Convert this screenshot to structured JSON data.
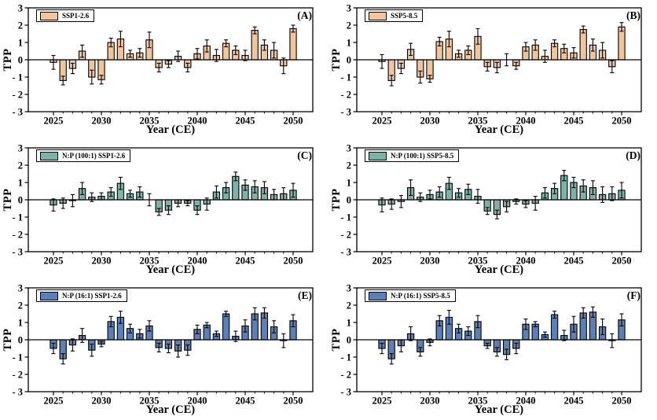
{
  "figure": {
    "ylabel": "TPP",
    "xlabel": "Year (CE)",
    "ylim": [
      -3,
      3
    ],
    "y_tick_values": [
      3,
      2,
      1,
      0,
      -1,
      -2,
      -3
    ],
    "y_tick_labels": [
      "3",
      "2",
      "1",
      "0",
      "- 1",
      "- 2",
      "- 3"
    ],
    "x_tick_values": [
      2025,
      2030,
      2035,
      2040,
      2045,
      2050
    ],
    "grid": false,
    "legend_position": "top-left",
    "error_bars": true
  },
  "chart_data": [
    {
      "type": "bar",
      "panel_label": "(A)",
      "legend": "SSP1-2.6",
      "color": "#F2C49B",
      "xlabel": "Year (CE)",
      "ylabel": "TPP",
      "ylim": [
        -3,
        3
      ],
      "x": [
        2025,
        2026,
        2027,
        2028,
        2029,
        2030,
        2031,
        2032,
        2033,
        2034,
        2035,
        2036,
        2037,
        2038,
        2039,
        2040,
        2041,
        2042,
        2043,
        2044,
        2045,
        2046,
        2047,
        2048,
        2049,
        2050
      ],
      "values": [
        -0.15,
        -1.2,
        -0.5,
        0.5,
        -1.0,
        -1.15,
        1.0,
        1.2,
        0.35,
        0.4,
        1.15,
        -0.45,
        -0.25,
        0.2,
        -0.45,
        0.35,
        0.8,
        0.25,
        0.95,
        0.55,
        0.25,
        1.7,
        0.85,
        0.55,
        -0.35,
        1.8
      ],
      "errors": [
        0.4,
        0.25,
        0.3,
        0.35,
        0.4,
        0.25,
        0.25,
        0.45,
        0.2,
        0.25,
        0.45,
        0.25,
        0.2,
        0.3,
        0.25,
        0.3,
        0.35,
        0.35,
        0.2,
        0.25,
        0.3,
        0.2,
        0.3,
        0.45,
        0.45,
        0.2
      ]
    },
    {
      "type": "bar",
      "panel_label": "(B)",
      "legend": "SSP5-8.5",
      "color": "#F2C49B",
      "xlabel": "Year (CE)",
      "ylabel": "TPP",
      "ylim": [
        -3,
        3
      ],
      "x": [
        2025,
        2026,
        2027,
        2028,
        2029,
        2030,
        2031,
        2032,
        2033,
        2034,
        2035,
        2036,
        2037,
        2038,
        2039,
        2040,
        2041,
        2042,
        2043,
        2044,
        2045,
        2046,
        2047,
        2048,
        2049,
        2050
      ],
      "values": [
        -0.1,
        -1.2,
        -0.5,
        0.6,
        -1.0,
        -1.1,
        1.05,
        1.2,
        0.35,
        0.55,
        1.35,
        -0.4,
        -0.45,
        0.0,
        -0.35,
        0.75,
        0.85,
        0.2,
        0.95,
        0.65,
        0.4,
        1.75,
        0.85,
        0.55,
        -0.4,
        1.9
      ],
      "errors": [
        0.4,
        0.3,
        0.3,
        0.35,
        0.35,
        0.2,
        0.25,
        0.45,
        0.2,
        0.25,
        0.45,
        0.25,
        0.3,
        0.35,
        0.2,
        0.25,
        0.3,
        0.35,
        0.2,
        0.25,
        0.3,
        0.2,
        0.35,
        0.45,
        0.35,
        0.25
      ]
    },
    {
      "type": "bar",
      "panel_label": "(C)",
      "legend": "N:P (100:1) SSP1-2.6",
      "color": "#7DB2A8",
      "xlabel": "Year (CE)",
      "ylabel": "TPP",
      "ylim": [
        -3,
        3
      ],
      "x": [
        2025,
        2026,
        2027,
        2028,
        2029,
        2030,
        2031,
        2032,
        2033,
        2034,
        2035,
        2036,
        2037,
        2038,
        2039,
        2040,
        2041,
        2042,
        2043,
        2044,
        2045,
        2046,
        2047,
        2048,
        2049,
        2050
      ],
      "values": [
        -0.3,
        -0.2,
        -0.05,
        0.65,
        0.15,
        0.2,
        0.45,
        0.95,
        0.35,
        0.45,
        0.0,
        -0.7,
        -0.6,
        -0.2,
        -0.2,
        -0.6,
        -0.25,
        0.45,
        0.7,
        1.35,
        0.85,
        0.75,
        0.7,
        0.3,
        0.35,
        0.55
      ],
      "errors": [
        0.35,
        0.3,
        0.35,
        0.35,
        0.25,
        0.2,
        0.25,
        0.35,
        0.2,
        0.3,
        0.35,
        0.2,
        0.25,
        0.2,
        0.15,
        0.25,
        0.35,
        0.35,
        0.3,
        0.25,
        0.3,
        0.35,
        0.35,
        0.3,
        0.35,
        0.4
      ]
    },
    {
      "type": "bar",
      "panel_label": "(D)",
      "legend": "N:P (100:1) SSP5-8.5",
      "color": "#7DB2A8",
      "xlabel": "Year (CE)",
      "ylabel": "TPP",
      "ylim": [
        -3,
        3
      ],
      "x": [
        2025,
        2026,
        2027,
        2028,
        2029,
        2030,
        2031,
        2032,
        2033,
        2034,
        2035,
        2036,
        2037,
        2038,
        2039,
        2040,
        2041,
        2042,
        2043,
        2044,
        2045,
        2046,
        2047,
        2048,
        2049,
        2050
      ],
      "values": [
        -0.3,
        -0.25,
        -0.1,
        0.7,
        0.15,
        0.3,
        0.45,
        0.95,
        0.4,
        0.6,
        0.2,
        -0.65,
        -0.85,
        -0.4,
        -0.1,
        -0.25,
        -0.2,
        0.4,
        0.65,
        1.4,
        1.0,
        0.8,
        0.7,
        0.3,
        0.35,
        0.55
      ],
      "errors": [
        0.4,
        0.3,
        0.35,
        0.45,
        0.25,
        0.25,
        0.3,
        0.35,
        0.25,
        0.3,
        0.4,
        0.2,
        0.25,
        0.3,
        0.15,
        0.2,
        0.4,
        0.3,
        0.3,
        0.3,
        0.3,
        0.35,
        0.4,
        0.45,
        0.4,
        0.45
      ]
    },
    {
      "type": "bar",
      "panel_label": "(E)",
      "legend": "N:P (16:1) SSP1-2.6",
      "color": "#5B80B8",
      "xlabel": "Year (CE)",
      "ylabel": "TPP",
      "ylim": [
        -3,
        3
      ],
      "x": [
        2025,
        2026,
        2027,
        2028,
        2029,
        2030,
        2031,
        2032,
        2033,
        2034,
        2035,
        2036,
        2037,
        2038,
        2039,
        2040,
        2041,
        2042,
        2043,
        2044,
        2045,
        2046,
        2047,
        2048,
        2049,
        2050
      ],
      "values": [
        -0.5,
        -1.1,
        -0.3,
        0.25,
        -0.6,
        -0.25,
        1.05,
        1.3,
        0.65,
        0.35,
        0.8,
        -0.45,
        -0.5,
        -0.65,
        -0.6,
        0.6,
        0.85,
        0.35,
        1.5,
        0.2,
        0.8,
        1.5,
        1.55,
        0.75,
        -0.05,
        1.1
      ],
      "errors": [
        0.3,
        0.3,
        0.35,
        0.4,
        0.35,
        0.15,
        0.3,
        0.35,
        0.25,
        0.25,
        0.3,
        0.25,
        0.25,
        0.35,
        0.3,
        0.25,
        0.15,
        0.15,
        0.15,
        0.3,
        0.35,
        0.35,
        0.3,
        0.35,
        0.4,
        0.35
      ]
    },
    {
      "type": "bar",
      "panel_label": "(F)",
      "legend": "N:P (16:1) SSP5-8.5",
      "color": "#5B80B8",
      "xlabel": "Year (CE)",
      "ylabel": "TPP",
      "ylim": [
        -3,
        3
      ],
      "x": [
        2025,
        2026,
        2027,
        2028,
        2029,
        2030,
        2031,
        2032,
        2033,
        2034,
        2035,
        2036,
        2037,
        2038,
        2039,
        2040,
        2041,
        2042,
        2043,
        2044,
        2045,
        2046,
        2047,
        2048,
        2049,
        2050
      ],
      "values": [
        -0.5,
        -1.1,
        -0.35,
        0.35,
        -0.7,
        -0.15,
        1.1,
        1.3,
        0.65,
        0.5,
        1.05,
        -0.35,
        -0.7,
        -0.85,
        -0.5,
        0.9,
        0.9,
        0.3,
        1.45,
        0.25,
        0.9,
        1.55,
        1.6,
        0.75,
        -0.05,
        1.15
      ],
      "errors": [
        0.3,
        0.3,
        0.35,
        0.4,
        0.25,
        0.2,
        0.3,
        0.4,
        0.25,
        0.25,
        0.35,
        0.15,
        0.25,
        0.3,
        0.3,
        0.3,
        0.15,
        0.15,
        0.2,
        0.3,
        0.45,
        0.3,
        0.3,
        0.45,
        0.4,
        0.35
      ]
    }
  ]
}
